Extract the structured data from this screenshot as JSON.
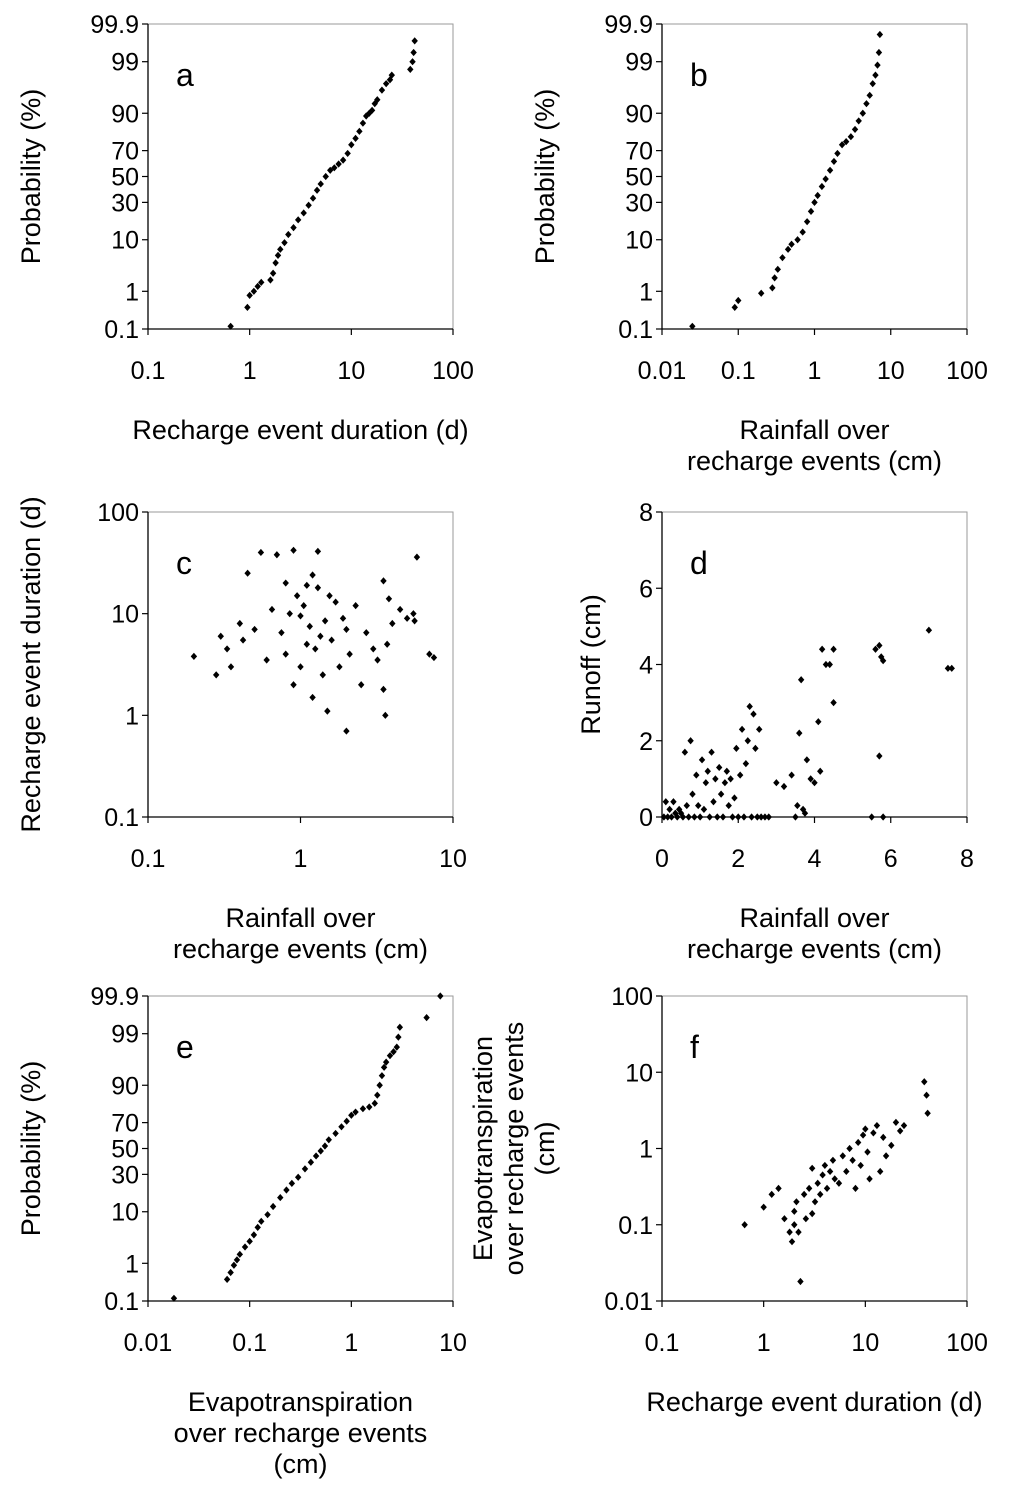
{
  "figure": {
    "colors": {
      "marker": "#000000",
      "axis": "#000000",
      "background": "#ffffff"
    },
    "panels": [
      {
        "id": "a",
        "label": "a",
        "xlabel": [
          "Recharge event duration (d)"
        ],
        "ylabel": [
          "Probability (%)"
        ],
        "xticks": [
          "0.1",
          "1",
          "10",
          "100"
        ],
        "yticks": [
          "0.1",
          "1",
          "10",
          "30",
          "50",
          "70",
          "90",
          "99",
          "99.9"
        ]
      },
      {
        "id": "b",
        "label": "b",
        "xlabel": [
          "Rainfall over",
          "recharge events (cm)"
        ],
        "ylabel": [
          "Probability (%)"
        ],
        "xticks": [
          "0.01",
          "0.1",
          "1",
          "10",
          "100"
        ],
        "yticks": [
          "0.1",
          "1",
          "10",
          "30",
          "50",
          "70",
          "90",
          "99",
          "99.9"
        ]
      },
      {
        "id": "c",
        "label": "c",
        "xlabel": [
          "Rainfall over",
          "recharge events (cm)"
        ],
        "ylabel": [
          "Recharge event duration (d)"
        ],
        "xticks": [
          "0.1",
          "1",
          "10"
        ],
        "yticks": [
          "0.1",
          "1",
          "10",
          "100"
        ]
      },
      {
        "id": "d",
        "label": "d",
        "xlabel": [
          "Rainfall over",
          "recharge events (cm)"
        ],
        "ylabel": [
          "Runoff (cm)"
        ],
        "xticks": [
          "0",
          "2",
          "4",
          "6",
          "8"
        ],
        "yticks": [
          "0",
          "2",
          "4",
          "6",
          "8"
        ]
      },
      {
        "id": "e",
        "label": "e",
        "xlabel": [
          "Evapotranspiration",
          "over recharge events",
          "(cm)"
        ],
        "ylabel": [
          "Probability (%)"
        ],
        "xticks": [
          "0.01",
          "0.1",
          "1",
          "10"
        ],
        "yticks": [
          "0.1",
          "1",
          "10",
          "30",
          "50",
          "70",
          "90",
          "99",
          "99.9"
        ]
      },
      {
        "id": "f",
        "label": "f",
        "xlabel": [
          "Recharge event duration (d)"
        ],
        "ylabel": [
          "Evapotranspiration",
          "over recharge events",
          "(cm)"
        ],
        "xticks": [
          "0.1",
          "1",
          "10",
          "100"
        ],
        "yticks": [
          "0.01",
          "0.1",
          "1",
          "10",
          "100"
        ]
      }
    ]
  },
  "chart_data": [
    {
      "panel": "a",
      "type": "scatter",
      "title": "",
      "xlabel": "Recharge event duration (d)",
      "ylabel": "Probability (%)",
      "xscale": "log",
      "yscale": "normal-probability",
      "xlim": [
        0.1,
        100
      ],
      "ylim": [
        0.1,
        99.9
      ],
      "grid": false,
      "legend": "none",
      "x": [
        0.65,
        0.95,
        1.0,
        1.1,
        1.2,
        1.3,
        1.6,
        1.7,
        1.8,
        1.9,
        2.0,
        2.2,
        2.4,
        2.7,
        3.0,
        3.4,
        3.8,
        4.2,
        4.6,
        5.0,
        5.6,
        6.2,
        6.8,
        7.5,
        8.3,
        9.2,
        10.0,
        11.0,
        12.0,
        13.0,
        14.0,
        15.0,
        16.0,
        17.0,
        18.0,
        20.0,
        22.0,
        24.0,
        25.0,
        38.0,
        40.0,
        41.0,
        42.0
      ],
      "y": [
        0.12,
        0.4,
        0.8,
        1.0,
        1.3,
        1.6,
        1.8,
        2.5,
        4.0,
        5.5,
        7.0,
        9.0,
        12.0,
        15.0,
        19.0,
        23.0,
        28.0,
        33.0,
        39.0,
        44.0,
        50.0,
        55.0,
        57.0,
        60.0,
        63.0,
        68.0,
        74.0,
        78.0,
        82.0,
        86.0,
        89.0,
        90.0,
        91.0,
        93.0,
        94.0,
        96.0,
        97.0,
        97.5,
        98.0,
        98.5,
        99.0,
        99.4,
        99.7
      ]
    },
    {
      "panel": "b",
      "type": "scatter",
      "title": "",
      "xlabel": "Rainfall over recharge events (cm)",
      "ylabel": "Probability (%)",
      "xscale": "log",
      "yscale": "normal-probability",
      "xlim": [
        0.01,
        100
      ],
      "ylim": [
        0.1,
        99.9
      ],
      "grid": false,
      "legend": "none",
      "x": [
        0.025,
        0.09,
        0.1,
        0.2,
        0.28,
        0.3,
        0.33,
        0.38,
        0.45,
        0.5,
        0.6,
        0.7,
        0.8,
        0.9,
        1.0,
        1.1,
        1.25,
        1.4,
        1.6,
        1.8,
        2.0,
        2.3,
        2.6,
        3.0,
        3.4,
        3.8,
        4.3,
        4.8,
        5.3,
        5.8,
        6.3,
        6.7,
        7.0,
        7.2
      ],
      "y": [
        0.12,
        0.4,
        0.6,
        0.9,
        1.2,
        2.0,
        3.0,
        5.0,
        7.0,
        8.5,
        10.0,
        13.0,
        18.0,
        24.0,
        30.0,
        35.0,
        42.0,
        48.0,
        55.0,
        62.0,
        68.0,
        74.0,
        76.0,
        79.0,
        83.0,
        87.0,
        90.0,
        93.0,
        95.0,
        97.0,
        98.0,
        98.8,
        99.4,
        99.8
      ]
    },
    {
      "panel": "c",
      "type": "scatter",
      "title": "",
      "xlabel": "Rainfall over recharge events (cm)",
      "ylabel": "Recharge event duration (d)",
      "xscale": "log",
      "yscale": "log",
      "xlim": [
        0.1,
        10
      ],
      "ylim": [
        0.1,
        100
      ],
      "grid": false,
      "legend": "none",
      "x": [
        0.2,
        0.28,
        0.3,
        0.33,
        0.35,
        0.4,
        0.42,
        0.45,
        0.5,
        0.55,
        0.6,
        0.65,
        0.7,
        0.75,
        0.8,
        0.8,
        0.85,
        0.9,
        0.9,
        0.95,
        1.0,
        1.0,
        1.05,
        1.1,
        1.1,
        1.15,
        1.2,
        1.2,
        1.25,
        1.3,
        1.3,
        1.35,
        1.4,
        1.45,
        1.5,
        1.55,
        1.6,
        1.7,
        1.8,
        1.9,
        2.0,
        2.0,
        2.1,
        2.3,
        2.5,
        2.7,
        3.0,
        3.2,
        3.5,
        3.5,
        3.6,
        3.7,
        3.8,
        4.0,
        4.5,
        5.0,
        5.5,
        5.6,
        5.8,
        7.0,
        7.5
      ],
      "y": [
        3.8,
        2.5,
        6.0,
        4.5,
        3.0,
        8.0,
        5.5,
        25.0,
        7.0,
        40.0,
        3.5,
        11.0,
        38.0,
        6.5,
        4.0,
        20.0,
        10.0,
        2.0,
        42.0,
        15.0,
        3.0,
        9.5,
        12.0,
        5.0,
        19.0,
        7.5,
        1.5,
        24.0,
        4.5,
        18.0,
        41.0,
        6.0,
        2.5,
        8.5,
        1.1,
        15.0,
        5.5,
        13.0,
        3.0,
        9.0,
        0.7,
        7.0,
        4.0,
        12.0,
        2.0,
        6.5,
        4.5,
        3.5,
        1.8,
        21.0,
        1.0,
        5.0,
        14.0,
        8.0,
        11.0,
        9.0,
        10.0,
        8.5,
        36.0,
        4.0,
        3.7
      ]
    },
    {
      "panel": "d",
      "type": "scatter",
      "title": "",
      "xlabel": "Rainfall over recharge events (cm)",
      "ylabel": "Runoff (cm)",
      "xscale": "linear",
      "yscale": "linear",
      "xlim": [
        0,
        8
      ],
      "ylim": [
        0,
        8
      ],
      "grid": false,
      "legend": "none",
      "x": [
        0.05,
        0.1,
        0.15,
        0.2,
        0.25,
        0.3,
        0.35,
        0.4,
        0.45,
        0.5,
        0.55,
        0.6,
        0.65,
        0.7,
        0.75,
        0.8,
        0.85,
        0.9,
        0.95,
        1.0,
        1.05,
        1.1,
        1.15,
        1.2,
        1.25,
        1.3,
        1.35,
        1.4,
        1.45,
        1.5,
        1.55,
        1.6,
        1.65,
        1.7,
        1.75,
        1.8,
        1.85,
        1.9,
        1.95,
        2.0,
        2.05,
        2.1,
        2.15,
        2.2,
        2.25,
        2.3,
        2.35,
        2.4,
        2.45,
        2.5,
        2.55,
        2.6,
        2.7,
        2.8,
        3.0,
        3.2,
        3.4,
        3.5,
        3.55,
        3.6,
        3.65,
        3.7,
        3.75,
        3.8,
        3.9,
        4.0,
        4.1,
        4.15,
        4.2,
        4.3,
        4.4,
        4.5,
        4.5,
        5.5,
        5.6,
        5.7,
        5.7,
        5.75,
        5.8,
        5.8,
        7.0,
        7.5,
        7.6
      ],
      "y": [
        0.0,
        0.4,
        0.0,
        0.2,
        0.0,
        0.4,
        0.1,
        0.0,
        0.2,
        0.1,
        0.0,
        1.7,
        0.3,
        0.0,
        2.0,
        0.6,
        0.0,
        1.1,
        0.3,
        0.0,
        1.5,
        0.2,
        0.9,
        1.2,
        0.0,
        1.7,
        0.4,
        1.0,
        0.0,
        1.3,
        0.6,
        0.0,
        0.9,
        1.2,
        0.3,
        1.0,
        0.0,
        0.5,
        1.8,
        0.0,
        1.1,
        2.3,
        0.0,
        1.4,
        2.0,
        2.9,
        0.0,
        2.7,
        1.8,
        0.0,
        2.3,
        0.0,
        0.0,
        0.0,
        0.9,
        0.8,
        1.1,
        0.0,
        0.3,
        2.2,
        3.6,
        0.2,
        0.1,
        1.5,
        1.0,
        0.9,
        2.5,
        1.2,
        4.4,
        4.0,
        4.0,
        4.4,
        3.0,
        0.0,
        4.4,
        4.5,
        1.6,
        4.2,
        4.1,
        0.0,
        4.9,
        3.9,
        3.9
      ]
    },
    {
      "panel": "e",
      "type": "scatter",
      "title": "",
      "xlabel": "Evapotranspiration over recharge events (cm)",
      "ylabel": "Probability (%)",
      "xscale": "log",
      "yscale": "normal-probability",
      "xlim": [
        0.01,
        10
      ],
      "ylim": [
        0.1,
        99.9
      ],
      "grid": false,
      "legend": "none",
      "x": [
        0.018,
        0.06,
        0.065,
        0.07,
        0.075,
        0.08,
        0.09,
        0.1,
        0.11,
        0.12,
        0.13,
        0.15,
        0.17,
        0.2,
        0.23,
        0.26,
        0.3,
        0.35,
        0.4,
        0.45,
        0.5,
        0.55,
        0.6,
        0.7,
        0.8,
        0.9,
        1.0,
        1.1,
        1.3,
        1.5,
        1.7,
        1.8,
        1.9,
        2.0,
        2.1,
        2.2,
        2.4,
        2.6,
        2.8,
        2.9,
        3.0,
        5.5,
        7.5
      ],
      "y": [
        0.12,
        0.4,
        0.6,
        0.9,
        1.2,
        1.6,
        2.3,
        3.0,
        4.0,
        5.5,
        7.0,
        9.0,
        12.0,
        16.0,
        20.0,
        24.0,
        28.0,
        34.0,
        39.0,
        44.0,
        48.0,
        52.0,
        57.0,
        62.0,
        67.0,
        71.0,
        75.0,
        77.0,
        79.0,
        80.0,
        82.0,
        86.0,
        90.0,
        93.0,
        95.0,
        96.0,
        97.0,
        97.5,
        98.0,
        98.8,
        99.3,
        99.6,
        99.9
      ]
    },
    {
      "panel": "f",
      "type": "scatter",
      "title": "",
      "xlabel": "Recharge event duration (d)",
      "ylabel": "Evapotranspiration over recharge events (cm)",
      "xscale": "log",
      "yscale": "log",
      "xlim": [
        0.1,
        100
      ],
      "ylim": [
        0.01,
        100
      ],
      "grid": false,
      "legend": "none",
      "x": [
        0.65,
        1.0,
        1.2,
        1.4,
        1.6,
        1.8,
        1.9,
        2.0,
        2.0,
        2.1,
        2.2,
        2.3,
        2.5,
        2.6,
        2.8,
        3.0,
        3.0,
        3.2,
        3.4,
        3.6,
        3.8,
        4.0,
        4.2,
        4.5,
        4.8,
        5.0,
        5.5,
        6.0,
        6.5,
        7.0,
        7.5,
        8.0,
        8.5,
        9.0,
        9.5,
        10.0,
        10.5,
        11.0,
        12.0,
        13.0,
        14.0,
        15.0,
        16.0,
        18.0,
        20.0,
        22.0,
        24.0,
        38.0,
        40.0,
        41.0
      ],
      "y": [
        0.1,
        0.17,
        0.25,
        0.3,
        0.12,
        0.08,
        0.06,
        0.1,
        0.15,
        0.2,
        0.08,
        0.018,
        0.25,
        0.12,
        0.3,
        0.14,
        0.55,
        0.2,
        0.35,
        0.25,
        0.45,
        0.6,
        0.3,
        0.5,
        0.7,
        0.4,
        0.35,
        0.8,
        0.5,
        1.0,
        0.7,
        0.3,
        1.2,
        0.6,
        1.5,
        1.8,
        0.9,
        0.4,
        1.6,
        2.0,
        0.5,
        1.4,
        0.8,
        1.1,
        2.2,
        1.7,
        2.0,
        7.5,
        5.0,
        2.9
      ]
    }
  ]
}
